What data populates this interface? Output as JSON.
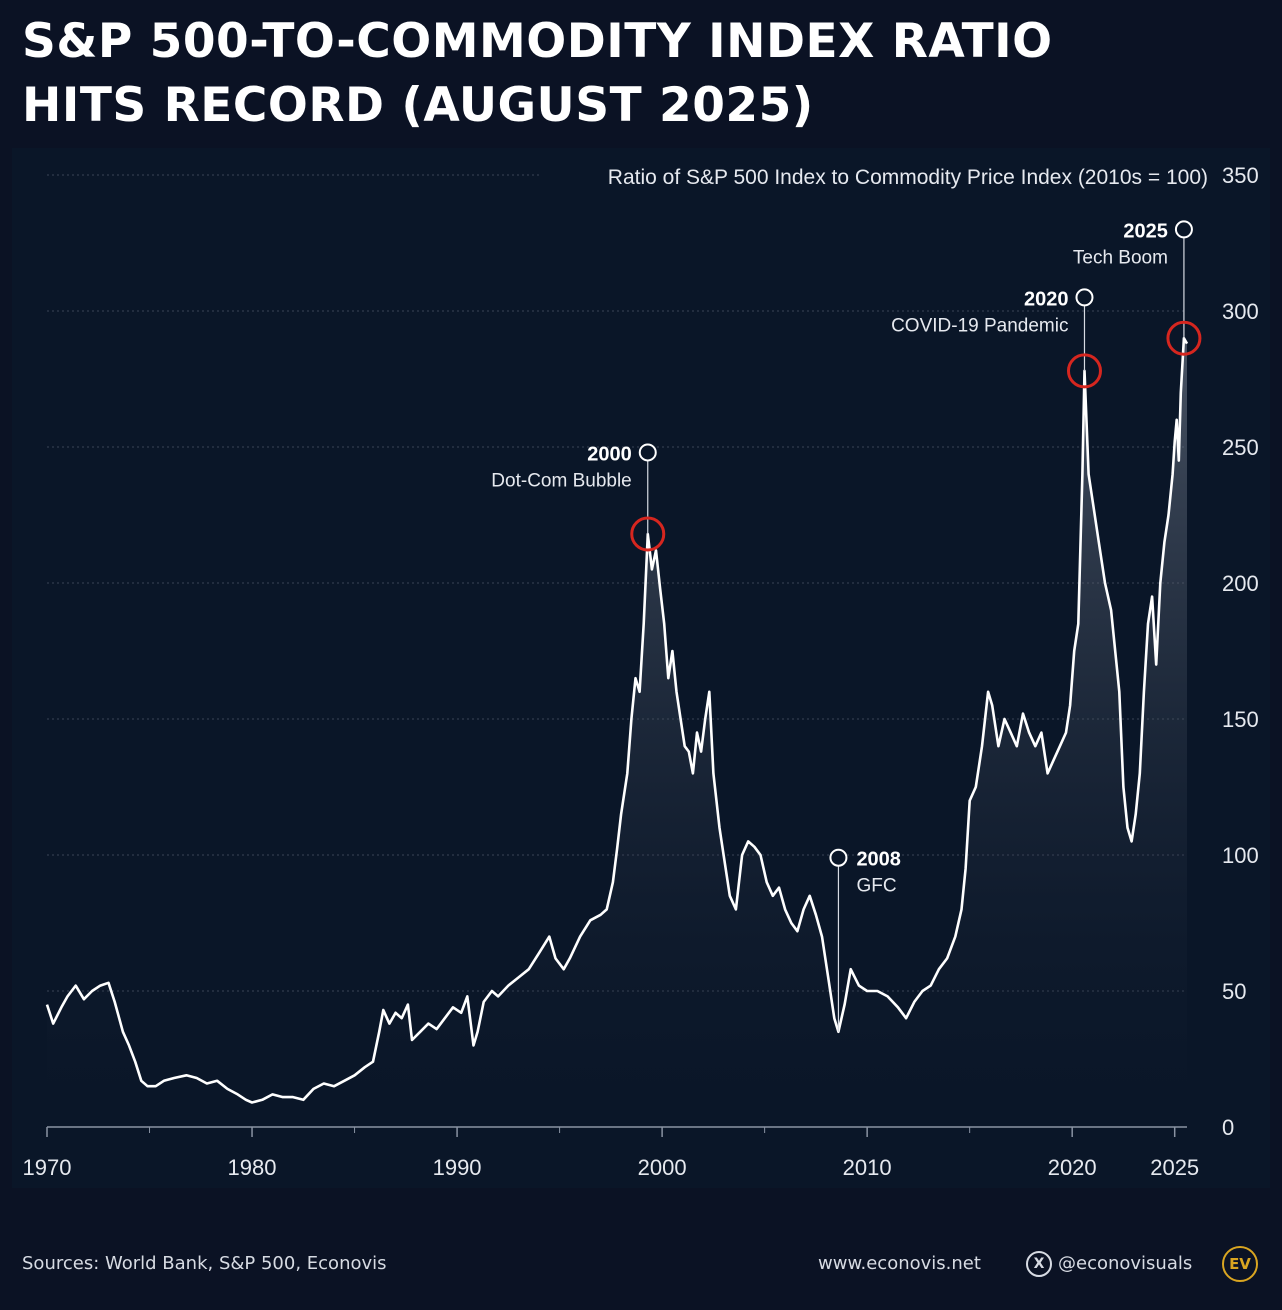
{
  "title": {
    "line1": "S&P 500-TO-COMMODITY INDEX RATIO",
    "line2": "HITS RECORD (AUGUST 2025)"
  },
  "chart_data": {
    "type": "area",
    "subtitle": "Ratio of S&P 500 Index to Commodity Price Index (2010s = 100)",
    "ylim": [
      0,
      350
    ],
    "xlim": [
      1970,
      2025.6
    ],
    "y_ticks": [
      0,
      50,
      100,
      150,
      200,
      250,
      300,
      350
    ],
    "x_ticks": [
      1970,
      1980,
      1990,
      2000,
      2010,
      2020,
      2025
    ],
    "x_minor_ticks": [
      1975,
      1985,
      1995,
      2005,
      2015
    ],
    "grid": true,
    "y_axis_side": "right",
    "line_color": "#ffffff",
    "highlight_color": "#d6261f",
    "series": [
      {
        "points": [
          [
            1970.0,
            45
          ],
          [
            1970.3,
            38
          ],
          [
            1970.7,
            44
          ],
          [
            1971.0,
            48
          ],
          [
            1971.4,
            52
          ],
          [
            1971.8,
            47
          ],
          [
            1972.2,
            50
          ],
          [
            1972.6,
            52
          ],
          [
            1973.0,
            53
          ],
          [
            1973.3,
            46
          ],
          [
            1973.7,
            35
          ],
          [
            1974.0,
            30
          ],
          [
            1974.3,
            24
          ],
          [
            1974.6,
            17
          ],
          [
            1974.9,
            15
          ],
          [
            1975.3,
            15
          ],
          [
            1975.7,
            17
          ],
          [
            1976.2,
            18
          ],
          [
            1976.8,
            19
          ],
          [
            1977.3,
            18
          ],
          [
            1977.8,
            16
          ],
          [
            1978.3,
            17
          ],
          [
            1978.8,
            14
          ],
          [
            1979.3,
            12
          ],
          [
            1979.7,
            10
          ],
          [
            1980.0,
            9
          ],
          [
            1980.5,
            10
          ],
          [
            1981.0,
            12
          ],
          [
            1981.5,
            11
          ],
          [
            1982.0,
            11
          ],
          [
            1982.5,
            10
          ],
          [
            1983.0,
            14
          ],
          [
            1983.5,
            16
          ],
          [
            1984.0,
            15
          ],
          [
            1984.5,
            17
          ],
          [
            1985.0,
            19
          ],
          [
            1985.5,
            22
          ],
          [
            1985.9,
            24
          ],
          [
            1986.2,
            35
          ],
          [
            1986.4,
            43
          ],
          [
            1986.7,
            38
          ],
          [
            1987.0,
            42
          ],
          [
            1987.3,
            40
          ],
          [
            1987.6,
            45
          ],
          [
            1987.8,
            32
          ],
          [
            1988.2,
            35
          ],
          [
            1988.6,
            38
          ],
          [
            1989.0,
            36
          ],
          [
            1989.4,
            40
          ],
          [
            1989.8,
            44
          ],
          [
            1990.2,
            42
          ],
          [
            1990.5,
            48
          ],
          [
            1990.8,
            30
          ],
          [
            1991.0,
            35
          ],
          [
            1991.3,
            46
          ],
          [
            1991.7,
            50
          ],
          [
            1992.0,
            48
          ],
          [
            1992.5,
            52
          ],
          [
            1993.0,
            55
          ],
          [
            1993.5,
            58
          ],
          [
            1994.0,
            64
          ],
          [
            1994.5,
            70
          ],
          [
            1994.8,
            62
          ],
          [
            1995.2,
            58
          ],
          [
            1995.5,
            62
          ],
          [
            1996.0,
            70
          ],
          [
            1996.5,
            76
          ],
          [
            1997.0,
            78
          ],
          [
            1997.3,
            80
          ],
          [
            1997.6,
            90
          ],
          [
            1997.8,
            102
          ],
          [
            1998.0,
            115
          ],
          [
            1998.3,
            130
          ],
          [
            1998.5,
            150
          ],
          [
            1998.7,
            165
          ],
          [
            1998.9,
            160
          ],
          [
            1999.1,
            185
          ],
          [
            1999.3,
            218
          ],
          [
            1999.5,
            205
          ],
          [
            1999.7,
            212
          ],
          [
            1999.9,
            198
          ],
          [
            2000.1,
            185
          ],
          [
            2000.3,
            165
          ],
          [
            2000.5,
            175
          ],
          [
            2000.7,
            160
          ],
          [
            2000.9,
            150
          ],
          [
            2001.1,
            140
          ],
          [
            2001.3,
            138
          ],
          [
            2001.5,
            130
          ],
          [
            2001.7,
            145
          ],
          [
            2001.9,
            138
          ],
          [
            2002.1,
            150
          ],
          [
            2002.3,
            160
          ],
          [
            2002.5,
            130
          ],
          [
            2002.8,
            110
          ],
          [
            2003.0,
            100
          ],
          [
            2003.3,
            85
          ],
          [
            2003.6,
            80
          ],
          [
            2003.9,
            100
          ],
          [
            2004.2,
            105
          ],
          [
            2004.5,
            103
          ],
          [
            2004.8,
            100
          ],
          [
            2005.1,
            90
          ],
          [
            2005.4,
            85
          ],
          [
            2005.7,
            88
          ],
          [
            2006.0,
            80
          ],
          [
            2006.3,
            75
          ],
          [
            2006.6,
            72
          ],
          [
            2006.9,
            80
          ],
          [
            2007.2,
            85
          ],
          [
            2007.5,
            78
          ],
          [
            2007.8,
            70
          ],
          [
            2008.1,
            55
          ],
          [
            2008.4,
            40
          ],
          [
            2008.6,
            35
          ],
          [
            2008.9,
            45
          ],
          [
            2009.2,
            58
          ],
          [
            2009.6,
            52
          ],
          [
            2010.0,
            50
          ],
          [
            2010.5,
            50
          ],
          [
            2011.0,
            48
          ],
          [
            2011.5,
            44
          ],
          [
            2011.9,
            40
          ],
          [
            2012.3,
            46
          ],
          [
            2012.7,
            50
          ],
          [
            2013.1,
            52
          ],
          [
            2013.5,
            58
          ],
          [
            2013.9,
            62
          ],
          [
            2014.3,
            70
          ],
          [
            2014.6,
            80
          ],
          [
            2014.8,
            95
          ],
          [
            2015.0,
            120
          ],
          [
            2015.3,
            125
          ],
          [
            2015.6,
            140
          ],
          [
            2015.9,
            160
          ],
          [
            2016.1,
            155
          ],
          [
            2016.4,
            140
          ],
          [
            2016.7,
            150
          ],
          [
            2017.0,
            145
          ],
          [
            2017.3,
            140
          ],
          [
            2017.6,
            152
          ],
          [
            2017.9,
            145
          ],
          [
            2018.2,
            140
          ],
          [
            2018.5,
            145
          ],
          [
            2018.8,
            130
          ],
          [
            2019.1,
            135
          ],
          [
            2019.4,
            140
          ],
          [
            2019.7,
            145
          ],
          [
            2019.9,
            155
          ],
          [
            2020.1,
            175
          ],
          [
            2020.3,
            185
          ],
          [
            2020.5,
            240
          ],
          [
            2020.6,
            278
          ],
          [
            2020.8,
            240
          ],
          [
            2021.0,
            230
          ],
          [
            2021.3,
            215
          ],
          [
            2021.6,
            200
          ],
          [
            2021.9,
            190
          ],
          [
            2022.1,
            175
          ],
          [
            2022.3,
            160
          ],
          [
            2022.5,
            125
          ],
          [
            2022.7,
            110
          ],
          [
            2022.9,
            105
          ],
          [
            2023.1,
            115
          ],
          [
            2023.3,
            130
          ],
          [
            2023.5,
            160
          ],
          [
            2023.7,
            185
          ],
          [
            2023.9,
            195
          ],
          [
            2024.1,
            170
          ],
          [
            2024.3,
            200
          ],
          [
            2024.5,
            215
          ],
          [
            2024.7,
            225
          ],
          [
            2024.9,
            240
          ],
          [
            2025.0,
            252
          ],
          [
            2025.1,
            260
          ],
          [
            2025.2,
            245
          ],
          [
            2025.3,
            270
          ],
          [
            2025.45,
            290
          ],
          [
            2025.6,
            288
          ]
        ]
      }
    ],
    "annotations": [
      {
        "year": "2000",
        "label": "Dot-Com Bubble",
        "x": 1999.3,
        "y": 218,
        "marker_y": 248,
        "align": "left"
      },
      {
        "year": "2008",
        "label": "GFC",
        "x": 2008.6,
        "y": 35,
        "marker_y": 99,
        "align": "right"
      },
      {
        "year": "2020",
        "label": "COVID-19 Pandemic",
        "x": 2020.6,
        "y": 278,
        "marker_y": 305,
        "align": "left"
      },
      {
        "year": "2025",
        "label": "Tech Boom",
        "x": 2025.45,
        "y": 290,
        "marker_y": 330,
        "align": "left"
      }
    ],
    "highlighted_peaks": [
      1999.3,
      2020.6,
      2025.45
    ]
  },
  "footer": {
    "sources": "Sources: World Bank, S&P 500, Econovis",
    "website": "www.econovis.net",
    "social_handle": "@econovisuals",
    "social_icon": "x-icon",
    "logo_text": "EV"
  }
}
